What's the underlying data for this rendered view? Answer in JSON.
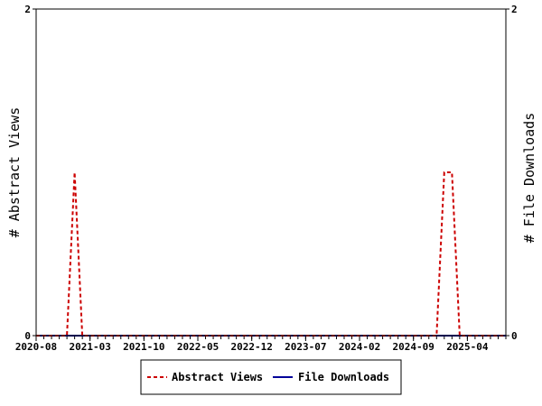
{
  "chart_data": {
    "type": "line",
    "title": "",
    "ylabel_left": "# Abstract Views",
    "ylabel_right": "# File Downloads",
    "y_left_range": [
      0,
      2
    ],
    "y_right_range": [
      0,
      2
    ],
    "y_left_ticks": [
      "0",
      "2"
    ],
    "y_right_ticks": [
      "0",
      "2"
    ],
    "x_range": [
      "2020-08",
      "2025-09"
    ],
    "x_tick_labels": [
      "2020-08",
      "2021-03",
      "2021-10",
      "2022-05",
      "2022-12",
      "2023-07",
      "2024-02",
      "2024-09",
      "2025-04"
    ],
    "grid": false,
    "legend_position": "bottom",
    "series": [
      {
        "name": "Abstract Views",
        "axis": "left",
        "color": "#cc0000",
        "style": "dashed",
        "points": [
          [
            "2020-08",
            0
          ],
          [
            "2020-09",
            0
          ],
          [
            "2020-10",
            0
          ],
          [
            "2020-11",
            0
          ],
          [
            "2020-12",
            0
          ],
          [
            "2021-01",
            1
          ],
          [
            "2021-02",
            0
          ],
          [
            "2021-03",
            0
          ],
          [
            "2021-04",
            0
          ],
          [
            "2024-10",
            0
          ],
          [
            "2024-11",
            0
          ],
          [
            "2024-12",
            0
          ],
          [
            "2025-01",
            1
          ],
          [
            "2025-02",
            1
          ],
          [
            "2025-03",
            0
          ],
          [
            "2025-04",
            0
          ],
          [
            "2025-09",
            0
          ]
        ]
      },
      {
        "name": "File Downloads",
        "axis": "right",
        "color": "#000099",
        "style": "solid",
        "points": [
          [
            "2020-08",
            0
          ],
          [
            "2025-09",
            0
          ]
        ]
      }
    ]
  }
}
